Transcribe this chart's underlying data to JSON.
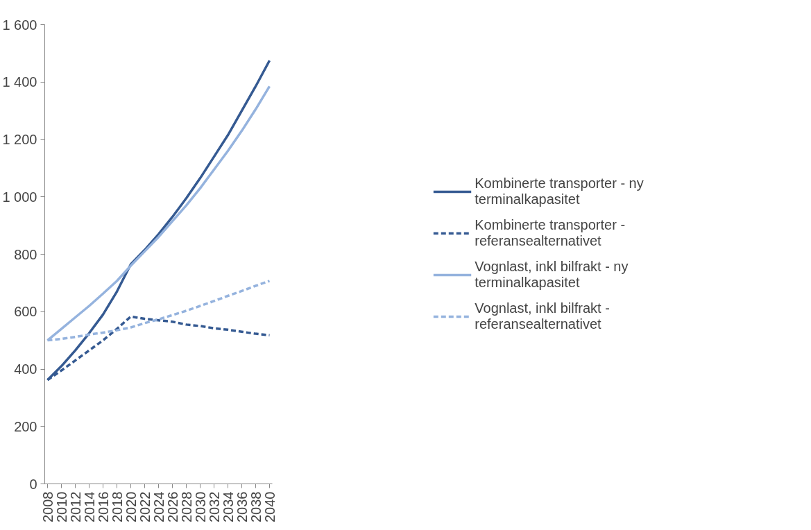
{
  "chart_data": {
    "type": "line",
    "x": [
      2008,
      2010,
      2012,
      2014,
      2016,
      2018,
      2020,
      2022,
      2024,
      2026,
      2028,
      2030,
      2032,
      2034,
      2036,
      2038,
      2040
    ],
    "series": [
      {
        "name": "Kombinerte transporter - ny terminalkapasitet",
        "color": "#355a92",
        "line_style": "solid",
        "values": [
          362,
          410,
          465,
          525,
          590,
          670,
          765,
          815,
          870,
          930,
          995,
          1065,
          1140,
          1215,
          1300,
          1385,
          1475
        ]
      },
      {
        "name": "Kombinerte transporter - referansealternativet",
        "color": "#355a92",
        "line_style": "dashed",
        "values": [
          362,
          395,
          430,
          465,
          500,
          540,
          583,
          575,
          570,
          565,
          555,
          550,
          542,
          537,
          530,
          523,
          518
        ]
      },
      {
        "name": "Vognlast, inkl bilfrakt - ny terminalkapasitet",
        "color": "#95b3de",
        "line_style": "solid",
        "values": [
          500,
          540,
          580,
          620,
          663,
          707,
          760,
          810,
          860,
          915,
          970,
          1030,
          1095,
          1160,
          1230,
          1305,
          1385
        ]
      },
      {
        "name": "Vognlast, inkl bilfrakt - referansealternativet",
        "color": "#95b3de",
        "line_style": "dashed",
        "values": [
          500,
          505,
          512,
          520,
          527,
          535,
          545,
          560,
          573,
          588,
          603,
          620,
          637,
          655,
          672,
          690,
          707
        ]
      }
    ],
    "xlim": [
      2007.6,
      2040.4
    ],
    "xticks": [
      2008,
      2010,
      2012,
      2014,
      2016,
      2018,
      2020,
      2022,
      2024,
      2026,
      2028,
      2030,
      2032,
      2034,
      2036,
      2038,
      2040
    ],
    "ylim": [
      0,
      1600
    ],
    "yticks": [
      0,
      200,
      400,
      600,
      800,
      {
        "value": 1000,
        "label": "1 000"
      },
      {
        "value": 1200,
        "label": "1 200"
      },
      {
        "value": 1400,
        "label": "1 400"
      },
      {
        "value": 1600,
        "label": "1 600"
      }
    ],
    "grid": false,
    "legend": "right",
    "marker": "none"
  }
}
